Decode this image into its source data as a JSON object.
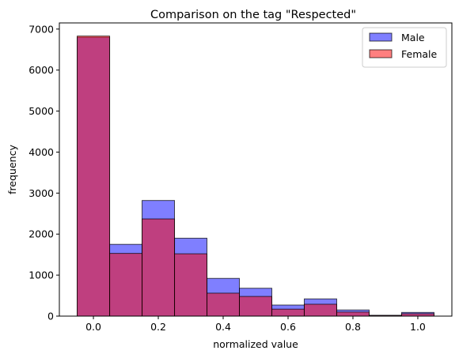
{
  "chart_data": {
    "type": "bar",
    "title": "Comparison on the tag \"Respected\"",
    "xlabel": "normalized value",
    "ylabel": "frequency",
    "xlim": [
      -0.105,
      1.105
    ],
    "ylim": [
      0,
      7150
    ],
    "x_ticks": [
      0.0,
      0.2,
      0.4,
      0.6,
      0.8,
      1.0
    ],
    "x_tick_labels": [
      "0.0",
      "0.2",
      "0.4",
      "0.6",
      "0.8",
      "1.0"
    ],
    "y_ticks": [
      0,
      1000,
      2000,
      3000,
      4000,
      5000,
      6000,
      7000
    ],
    "y_tick_labels": [
      "0",
      "1000",
      "2000",
      "3000",
      "4000",
      "5000",
      "6000",
      "7000"
    ],
    "bin_width": 0.1,
    "bin_centers": [
      0.0,
      0.1,
      0.2,
      0.3,
      0.4,
      0.5,
      0.6,
      0.7,
      0.8,
      0.9,
      1.0
    ],
    "series": [
      {
        "name": "Male",
        "color": "#0000ff",
        "alpha": 0.5,
        "values": [
          6800,
          1750,
          2820,
          1900,
          920,
          680,
          270,
          420,
          150,
          20,
          90
        ]
      },
      {
        "name": "Female",
        "color": "#ff0000",
        "alpha": 0.5,
        "values": [
          6830,
          1530,
          2370,
          1520,
          560,
          480,
          170,
          290,
          100,
          15,
          60
        ]
      }
    ],
    "legend_position": "top-right",
    "grid": false
  }
}
